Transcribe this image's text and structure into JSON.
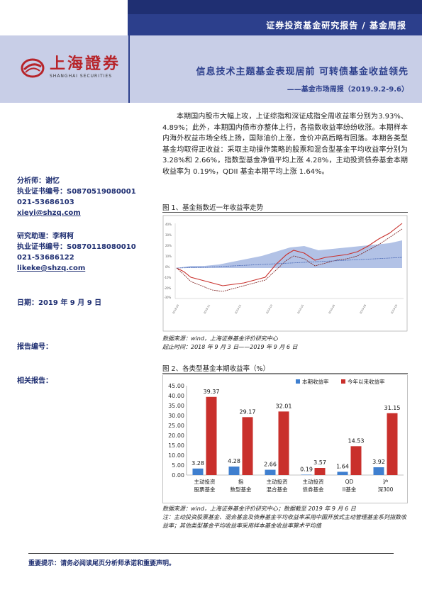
{
  "header": {
    "band_title": "证券投资基金研究报告 / 基金周报",
    "logo_cn": "上海證券",
    "logo_en": "SHANGHAI SECURITIES",
    "main_title": "信息技术主题基金表现居前  可转债基金收益领先",
    "sub_title": "——基金市场周报（2019.9.2-9.6）"
  },
  "analyst": {
    "label": "分析师：谢忆",
    "cert": "执业证书编号：S0870519080001",
    "phone": "021-53686103",
    "email": "xieyi@shzq.com"
  },
  "assistant": {
    "label": "研究助理：李柯柯",
    "cert": "执业证书编号：S0870118080010",
    "phone": "021-53686122",
    "email": "likeke@shzq.com"
  },
  "date": "日期：2019 年 9 月 9 日",
  "report_no": "报告编号：",
  "related": "相关报告：",
  "summary": "本期国内股市大幅上攻，上证综指和深证成指全周收益率分别为3.93%、4.89%；此外，本期国内债市亦整体上行，各指数收益率纷纷收涨。本期样本内海外权益市场全线上扬，国际油价上涨，金价冲高后略有回落。本期各类型基金均取得正收益：采取主动操作策略的股票和混合型基金平均收益率分别为 3.28%和 2.66%，指数型基金净值平均上涨 4.28%，主动投资债券基金本期收益率为 0.19%，QDII 基金本期平均上涨 1.64%。",
  "figure1": {
    "title": "图 1、基金指数近一年收益率走势",
    "source": "数据来源：wind，上海证券基金评价研究中心",
    "period": "起止时间：2018 年 9 月 3 日——2019 年 9 月 6 日"
  },
  "figure2": {
    "title": "图 2、各类型基金本期收益率（%）",
    "source": "数据来源：wind，上海证券基金评价研究中心；数据截至 2019 年 9 月 6 日",
    "note": "注：主动投资股票基金、混合基金及债券基金平均收益率采用中国开放式主动管理基金系列指数收益率；其他类型基金平均收益率采用样本基金收益率算术平均值"
  },
  "chart_data": [
    {
      "type": "bar",
      "categories": [
        "主动投资股票基金",
        "指数型基金",
        "主动投资混合基金",
        "主动投资债券基金",
        "QDII基金",
        "沪深300"
      ],
      "series": [
        {
          "name": "本期收益率",
          "values": [
            3.28,
            4.28,
            2.66,
            0.19,
            1.64,
            3.92
          ],
          "color": "#3f7fcf"
        },
        {
          "name": "今年以来收益率",
          "values": [
            39.37,
            29.17,
            32.01,
            3.57,
            14.53,
            31.15
          ],
          "color": "#c9302c"
        }
      ],
      "ylim": [
        0,
        45
      ],
      "yticks": [
        "0.00",
        "5.00",
        "10.00",
        "15.00",
        "20.00",
        "25.00",
        "30.00",
        "35.00",
        "40.00",
        "45.00"
      ],
      "legend": "top-right",
      "grid": false
    }
  ],
  "footer": "重要提示：请务必阅读尾页分析师承诺和重要声明。"
}
